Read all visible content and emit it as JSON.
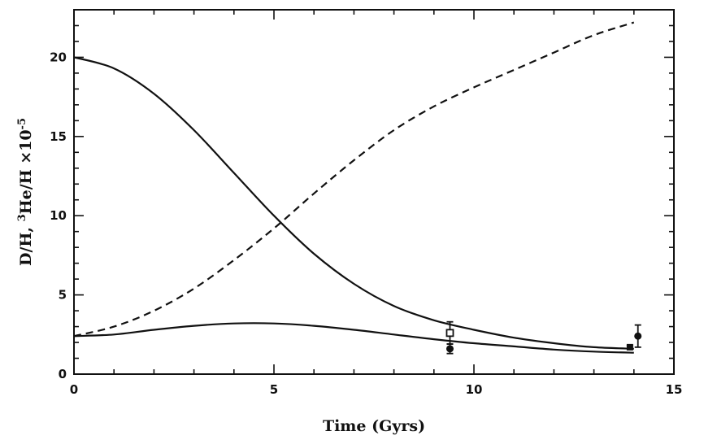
{
  "chart_data": {
    "type": "line",
    "xlabel": "Time (Gyrs)",
    "ylabel_parts": {
      "pre": "D/H, ",
      "sup1": "3",
      "mid": "He/H ×10",
      "sup2": "-5"
    },
    "xlim": [
      0,
      15
    ],
    "ylim": [
      0,
      23
    ],
    "x_ticks": [
      0,
      5,
      10,
      15
    ],
    "y_ticks": [
      0,
      5,
      10,
      15,
      20
    ],
    "grid": false,
    "series": [
      {
        "style": "solid",
        "x": [
          0,
          1,
          2,
          3,
          4,
          5,
          6,
          7,
          8,
          9,
          10,
          11,
          12,
          13,
          14
        ],
        "y": [
          20.0,
          19.3,
          17.7,
          15.4,
          12.7,
          10.0,
          7.6,
          5.7,
          4.3,
          3.4,
          2.8,
          2.3,
          1.95,
          1.7,
          1.6
        ]
      },
      {
        "style": "dashed",
        "x": [
          0,
          1,
          2,
          3,
          4,
          5,
          6,
          7,
          8,
          9,
          10,
          11,
          12,
          13,
          14
        ],
        "y": [
          2.4,
          3.0,
          4.0,
          5.4,
          7.2,
          9.2,
          11.4,
          13.5,
          15.4,
          16.9,
          18.1,
          19.2,
          20.3,
          21.4,
          22.2
        ]
      },
      {
        "style": "solid",
        "x": [
          0,
          1,
          2,
          3,
          4,
          5,
          6,
          7,
          8,
          9,
          10,
          11,
          12,
          13,
          14
        ],
        "y": [
          2.4,
          2.5,
          2.8,
          3.05,
          3.2,
          3.2,
          3.05,
          2.8,
          2.5,
          2.2,
          1.95,
          1.75,
          1.55,
          1.42,
          1.35
        ]
      }
    ],
    "points": [
      {
        "marker": "open-square",
        "x": 9.4,
        "y": 2.6,
        "yerr": [
          0.7,
          0.7
        ]
      },
      {
        "marker": "filled-circle",
        "x": 9.4,
        "y": 1.6,
        "yerr": [
          0.3,
          0.3
        ]
      },
      {
        "marker": "filled-square",
        "x": 13.9,
        "y": 1.7,
        "yerr": [
          0.1,
          0.1
        ]
      },
      {
        "marker": "filled-circle",
        "x": 14.1,
        "y": 2.4,
        "yerr": [
          0.7,
          0.7
        ]
      }
    ]
  }
}
